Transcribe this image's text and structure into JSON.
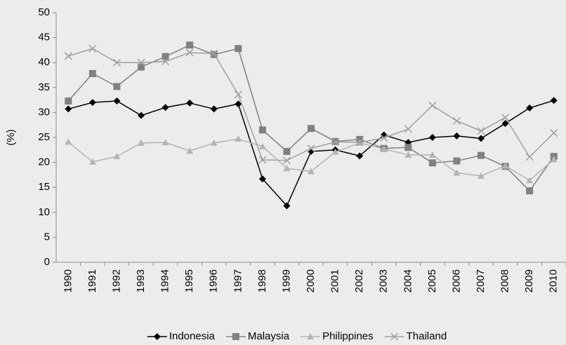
{
  "chart_data": {
    "type": "line",
    "y_label": "(%)",
    "categories": [
      "1990",
      "1991",
      "1992",
      "1993",
      "1994",
      "1995",
      "1996",
      "1997",
      "1998",
      "1999",
      "2000",
      "2001",
      "2002",
      "2003",
      "2004",
      "2005",
      "2006",
      "2007",
      "2008",
      "2009",
      "2010"
    ],
    "series": [
      {
        "name": "Indonesia",
        "color": "#000000",
        "marker": "diamond",
        "values": [
          30.7,
          32.0,
          32.3,
          29.4,
          31.0,
          31.9,
          30.7,
          31.7,
          16.7,
          11.3,
          22.2,
          22.5,
          21.3,
          25.5,
          24.0,
          25.0,
          25.3,
          24.8,
          27.8,
          30.9,
          32.4
        ]
      },
      {
        "name": "Malaysia",
        "color": "#808080",
        "marker": "square",
        "values": [
          32.3,
          37.8,
          35.2,
          39.1,
          41.2,
          43.5,
          41.6,
          42.8,
          26.5,
          22.2,
          26.8,
          24.2,
          24.6,
          22.8,
          23.0,
          19.9,
          20.3,
          21.4,
          19.2,
          14.3,
          21.2
        ]
      },
      {
        "name": "Philippines",
        "color": "#b4b4b4",
        "marker": "triangle",
        "values": [
          24.1,
          20.1,
          21.2,
          23.9,
          24.0,
          22.3,
          23.9,
          24.7,
          23.2,
          18.8,
          18.2,
          22.1,
          23.9,
          22.7,
          21.5,
          21.5,
          17.9,
          17.3,
          19.3,
          16.4,
          20.6
        ]
      },
      {
        "name": "Thailand",
        "color": "#a0a0a0",
        "marker": "x",
        "values": [
          41.3,
          42.8,
          40.0,
          40.0,
          40.2,
          42.0,
          41.8,
          33.6,
          20.5,
          20.4,
          22.8,
          24.1,
          24.0,
          24.9,
          26.7,
          31.4,
          28.3,
          26.3,
          29.0,
          21.1,
          25.9
        ]
      }
    ],
    "ylim": [
      0,
      50
    ],
    "yticks": [
      0,
      5,
      10,
      15,
      20,
      25,
      30,
      35,
      40,
      45,
      50
    ],
    "grid": false,
    "legend": "bottom"
  }
}
